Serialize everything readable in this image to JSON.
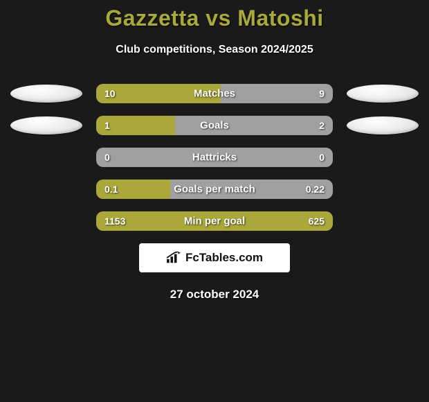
{
  "title": "Gazzetta vs Matoshi",
  "title_color": "#aaa83a",
  "subtitle": "Club competitions, Season 2024/2025",
  "background_color": "#1a1a1a",
  "bar_track_color": "#a0a0a0",
  "bar_fill_color": "#aaa83a",
  "rows": [
    {
      "left": "10",
      "center": "Matches",
      "right": "9",
      "fill_pct": 52.6,
      "show_ovals": true
    },
    {
      "left": "1",
      "center": "Goals",
      "right": "2",
      "fill_pct": 33.3,
      "show_ovals": true
    },
    {
      "left": "0",
      "center": "Hattricks",
      "right": "0",
      "fill_pct": 0,
      "show_ovals": false
    },
    {
      "left": "0.1",
      "center": "Goals per match",
      "right": "0.22",
      "fill_pct": 31.3,
      "show_ovals": false
    },
    {
      "left": "1153",
      "center": "Min per goal",
      "right": "625",
      "fill_pct": 100,
      "show_ovals": false
    }
  ],
  "logo_text": "FcTables.com",
  "date_text": "27 october 2024"
}
